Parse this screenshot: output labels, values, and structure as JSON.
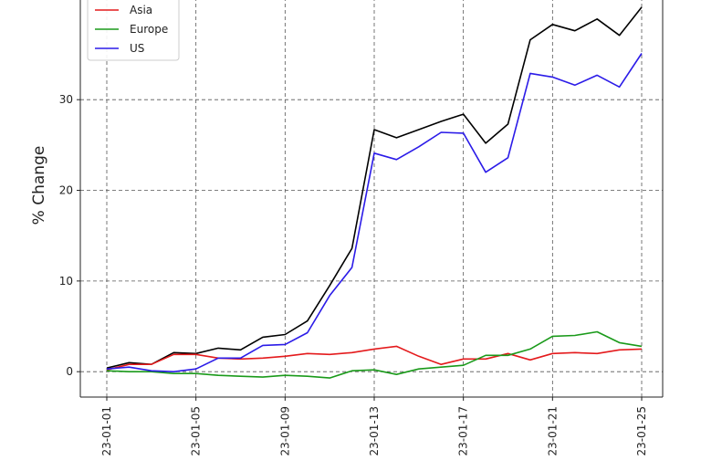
{
  "chart_data": {
    "type": "line",
    "title": "",
    "xlabel": "",
    "ylabel": "% Change",
    "x": [
      "2023-01-01",
      "2023-01-02",
      "2023-01-03",
      "2023-01-04",
      "2023-01-05",
      "2023-01-06",
      "2023-01-07",
      "2023-01-08",
      "2023-01-09",
      "2023-01-10",
      "2023-01-11",
      "2023-01-12",
      "2023-01-13",
      "2023-01-14",
      "2023-01-15",
      "2023-01-16",
      "2023-01-17",
      "2023-01-18",
      "2023-01-19",
      "2023-01-20",
      "2023-01-21",
      "2023-01-22",
      "2023-01-23",
      "2023-01-24",
      "2023-01-25"
    ],
    "x_tick_labels": [
      "23-01-01",
      "23-01-05",
      "23-01-09",
      "23-01-13",
      "23-01-17",
      "23-01-21",
      "23-01-25"
    ],
    "y_ticks": [
      0,
      10,
      20,
      30
    ],
    "ylim": [
      -2.8,
      42
    ],
    "grid": true,
    "legend": "top-left",
    "series": [
      {
        "name": "",
        "color": "#000000",
        "values": [
          0.4,
          1.0,
          0.8,
          2.1,
          2.0,
          2.6,
          2.4,
          3.8,
          4.1,
          5.6,
          9.5,
          13.6,
          26.7,
          25.8,
          26.7,
          27.6,
          28.4,
          25.2,
          27.3,
          36.6,
          38.3,
          37.6,
          38.9,
          37.1,
          40.2
        ]
      },
      {
        "name": "Asia",
        "color": "#e41a1c",
        "values": [
          0.2,
          0.8,
          0.8,
          1.9,
          1.9,
          1.5,
          1.4,
          1.5,
          1.7,
          2.0,
          1.9,
          2.1,
          2.5,
          2.8,
          1.7,
          0.8,
          1.4,
          1.4,
          2.0,
          1.3,
          2.0,
          2.1,
          2.0,
          2.4,
          2.5
        ]
      },
      {
        "name": "Europe",
        "color": "#1a9a1a",
        "values": [
          0.1,
          0.0,
          0.0,
          -0.2,
          -0.2,
          -0.4,
          -0.5,
          -0.6,
          -0.4,
          -0.5,
          -0.7,
          0.1,
          0.2,
          -0.3,
          0.3,
          0.5,
          0.7,
          1.8,
          1.8,
          2.5,
          3.9,
          4.0,
          4.4,
          3.2,
          2.8
        ]
      },
      {
        "name": "US",
        "color": "#2b1be8",
        "values": [
          0.3,
          0.5,
          0.1,
          0.0,
          0.3,
          1.5,
          1.5,
          2.9,
          3.0,
          4.3,
          8.4,
          11.5,
          24.1,
          23.4,
          24.8,
          26.4,
          26.3,
          22.0,
          23.6,
          32.9,
          32.5,
          31.6,
          32.7,
          31.4,
          35.1
        ]
      }
    ]
  }
}
